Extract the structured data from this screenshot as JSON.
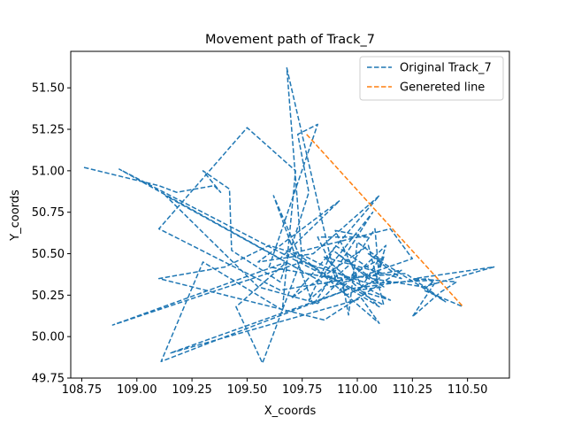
{
  "chart_data": {
    "type": "line",
    "title": "Movement path of Track_7",
    "xlabel": "X_coords",
    "ylabel": "Y_coords",
    "xlim": [
      108.7,
      110.69
    ],
    "ylim": [
      49.75,
      51.72
    ],
    "xticks": [
      108.75,
      109.0,
      109.25,
      109.5,
      109.75,
      110.0,
      110.25,
      110.5
    ],
    "yticks": [
      49.75,
      50.0,
      50.25,
      50.5,
      50.75,
      51.0,
      51.25,
      51.5
    ],
    "xtick_labels": [
      "108.75",
      "109.00",
      "109.25",
      "109.50",
      "109.75",
      "110.00",
      "110.25",
      "110.50"
    ],
    "ytick_labels": [
      "49.75",
      "50.00",
      "50.25",
      "50.50",
      "50.75",
      "51.00",
      "51.25",
      "51.50"
    ],
    "legend_position": "top-right",
    "grid": false,
    "series": [
      {
        "name": "Original Track_7",
        "color": "#1f77b4",
        "style": "dashed",
        "points": [
          [
            108.76,
            51.02
          ],
          [
            109.1,
            50.91
          ],
          [
            109.18,
            50.87
          ],
          [
            109.35,
            50.91
          ],
          [
            109.38,
            50.87
          ],
          [
            109.3,
            51.0
          ],
          [
            109.42,
            50.89
          ],
          [
            109.43,
            50.52
          ],
          [
            109.65,
            50.33
          ],
          [
            109.78,
            50.87
          ],
          [
            109.73,
            51.22
          ],
          [
            109.82,
            51.28
          ],
          [
            109.6,
            50.42
          ],
          [
            109.9,
            50.35
          ],
          [
            109.68,
            51.62
          ],
          [
            109.75,
            50.45
          ],
          [
            109.62,
            50.85
          ],
          [
            109.8,
            50.19
          ],
          [
            110.07,
            50.75
          ],
          [
            109.85,
            50.38
          ],
          [
            110.12,
            50.19
          ],
          [
            110.05,
            50.55
          ],
          [
            109.7,
            50.23
          ],
          [
            110.1,
            50.85
          ],
          [
            109.8,
            50.5
          ],
          [
            109.55,
            50.45
          ],
          [
            109.92,
            50.82
          ],
          [
            109.65,
            50.47
          ],
          [
            108.92,
            51.01
          ],
          [
            109.88,
            50.35
          ],
          [
            110.22,
            50.38
          ],
          [
            110.4,
            50.21
          ],
          [
            110.05,
            50.5
          ],
          [
            110.2,
            50.35
          ],
          [
            109.85,
            50.48
          ],
          [
            110.1,
            50.18
          ],
          [
            109.7,
            50.5
          ],
          [
            110.15,
            50.65
          ],
          [
            110.25,
            50.47
          ],
          [
            109.88,
            50.3
          ],
          [
            109.13,
            50.85
          ],
          [
            109.55,
            50.3
          ],
          [
            109.82,
            50.2
          ],
          [
            109.93,
            50.35
          ],
          [
            109.96,
            50.13
          ],
          [
            110.0,
            50.57
          ],
          [
            110.1,
            50.47
          ],
          [
            110.02,
            50.3
          ],
          [
            109.9,
            50.64
          ],
          [
            110.05,
            50.6
          ],
          [
            109.82,
            50.6
          ],
          [
            109.95,
            50.25
          ],
          [
            110.1,
            50.35
          ],
          [
            110.08,
            50.65
          ],
          [
            109.98,
            50.45
          ],
          [
            109.78,
            50.22
          ],
          [
            109.9,
            50.55
          ],
          [
            110.09,
            50.38
          ],
          [
            110.13,
            50.55
          ],
          [
            109.92,
            50.28
          ],
          [
            110.32,
            50.35
          ],
          [
            110.35,
            50.32
          ],
          [
            110.25,
            50.12
          ],
          [
            110.38,
            50.27
          ],
          [
            110.45,
            50.33
          ],
          [
            110.26,
            50.35
          ],
          [
            110.62,
            50.42
          ],
          [
            110.3,
            50.3
          ],
          [
            109.97,
            50.37
          ],
          [
            110.12,
            50.48
          ],
          [
            110.08,
            50.32
          ],
          [
            109.9,
            50.51
          ],
          [
            110.12,
            50.3
          ],
          [
            110.0,
            50.28
          ],
          [
            110.15,
            50.22
          ],
          [
            109.77,
            50.48
          ],
          [
            109.6,
            50.55
          ],
          [
            109.4,
            50.42
          ],
          [
            109.1,
            50.35
          ],
          [
            109.85,
            50.1
          ],
          [
            110.2,
            50.4
          ],
          [
            109.65,
            50.28
          ],
          [
            109.1,
            50.65
          ],
          [
            109.5,
            51.26
          ],
          [
            109.72,
            51.0
          ],
          [
            109.66,
            50.16
          ],
          [
            109.3,
            50.45
          ],
          [
            109.11,
            49.85
          ],
          [
            109.95,
            50.28
          ],
          [
            109.15,
            49.9
          ],
          [
            110.02,
            50.23
          ],
          [
            110.1,
            50.08
          ],
          [
            109.75,
            50.48
          ],
          [
            109.57,
            49.84
          ],
          [
            109.45,
            50.18
          ],
          [
            109.68,
            50.45
          ],
          [
            108.89,
            50.07
          ],
          [
            109.75,
            50.45
          ],
          [
            110.05,
            50.32
          ],
          [
            110.35,
            50.34
          ],
          [
            110.3,
            50.28
          ],
          [
            110.48,
            50.18
          ]
        ]
      },
      {
        "name": "Genereted line",
        "color": "#ff7f0e",
        "style": "dashed",
        "points": [
          [
            109.77,
            51.22
          ],
          [
            110.48,
            50.18
          ]
        ]
      }
    ]
  }
}
